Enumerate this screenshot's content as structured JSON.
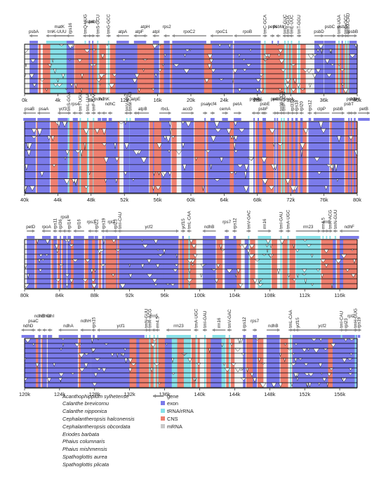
{
  "colors": {
    "exon": "#7b7bea",
    "rna": "#87e0e8",
    "cns": "#ee7f6f",
    "mrna": "#c8c8c8",
    "gene_arrow": "#8a8a8a",
    "track_fill": "#f2f2f2"
  },
  "panels": [
    {
      "range": [
        0,
        40000
      ],
      "ticks": [
        "0k",
        "4k",
        "8k",
        "12k",
        "16k",
        "20k",
        "24k",
        "28k",
        "32k",
        "36k",
        "40k"
      ],
      "genes": [
        {
          "name": "psbA",
          "pos": 1100,
          "dir": -1,
          "row": 0,
          "len": 1000
        },
        {
          "name": "matK",
          "pos": 4200,
          "dir": -1,
          "row": 1,
          "len": 1500
        },
        {
          "name": "trnK-UUU",
          "pos": 3900,
          "dir": -1,
          "row": 0,
          "len": 2600
        },
        {
          "name": "rps16",
          "pos": 5500,
          "dir": -1,
          "row": 0,
          "len": 900
        },
        {
          "name": "trnQ-UUG",
          "pos": 7300,
          "dir": -1,
          "row": 2,
          "len": 120
        },
        {
          "name": "psbK",
          "pos": 7800,
          "dir": 1,
          "row": 2,
          "len": 120
        },
        {
          "name": "psbI",
          "pos": 8200,
          "dir": 1,
          "row": 2,
          "len": 120
        },
        {
          "name": "trnS-GCU",
          "pos": 8800,
          "dir": -1,
          "row": 2,
          "len": 120
        },
        {
          "name": "trnG-GCC",
          "pos": 10100,
          "dir": 1,
          "row": 2,
          "len": 120
        },
        {
          "name": "atpA",
          "pos": 11800,
          "dir": -1,
          "row": 0,
          "len": 1500
        },
        {
          "name": "atpF",
          "pos": 13800,
          "dir": -1,
          "row": 0,
          "len": 1300
        },
        {
          "name": "atpH",
          "pos": 14500,
          "dir": -1,
          "row": 1,
          "len": 250
        },
        {
          "name": "atpI",
          "pos": 15800,
          "dir": -1,
          "row": 0,
          "len": 750
        },
        {
          "name": "rps2",
          "pos": 17100,
          "dir": -1,
          "row": 1,
          "len": 700
        },
        {
          "name": "rpoC2",
          "pos": 19800,
          "dir": -1,
          "row": 0,
          "len": 4100
        },
        {
          "name": "rpoC1",
          "pos": 23700,
          "dir": -1,
          "row": 0,
          "len": 2700
        },
        {
          "name": "rpoB",
          "pos": 26800,
          "dir": -1,
          "row": 0,
          "len": 3200
        },
        {
          "name": "trnC-GCA",
          "pos": 28900,
          "dir": 1,
          "row": 2,
          "len": 120
        },
        {
          "name": "petN",
          "pos": 29800,
          "dir": 1,
          "row": 1,
          "len": 120
        },
        {
          "name": "psbM",
          "pos": 30500,
          "dir": -1,
          "row": 1,
          "len": 120
        },
        {
          "name": "trnD-GUC",
          "pos": 31300,
          "dir": -1,
          "row": 2,
          "len": 120
        },
        {
          "name": "trnY-GUA",
          "pos": 31700,
          "dir": -1,
          "row": 2,
          "len": 120
        },
        {
          "name": "trnE-UUC",
          "pos": 32100,
          "dir": -1,
          "row": 2,
          "len": 120
        },
        {
          "name": "trnT-GGU",
          "pos": 33000,
          "dir": 1,
          "row": 2,
          "len": 120
        },
        {
          "name": "psbD",
          "pos": 35400,
          "dir": 1,
          "row": 0,
          "len": 1100
        },
        {
          "name": "psbC",
          "pos": 36700,
          "dir": 1,
          "row": 1,
          "len": 1400
        },
        {
          "name": "trnS-UGA",
          "pos": 37800,
          "dir": -1,
          "row": 2,
          "len": 120
        },
        {
          "name": "psbZ",
          "pos": 38200,
          "dir": 1,
          "row": 1,
          "len": 120
        },
        {
          "name": "trnG-GCC",
          "pos": 38600,
          "dir": 1,
          "row": 2,
          "len": 120
        },
        {
          "name": "trnfM-CAU",
          "pos": 38900,
          "dir": -1,
          "row": 2,
          "len": 120
        },
        {
          "name": "psbB",
          "pos": 39500,
          "dir": 1,
          "row": 0,
          "len": 900
        }
      ]
    },
    {
      "range": [
        40000,
        80000
      ],
      "ticks": [
        "40k",
        "44k",
        "48k",
        "52k",
        "56k",
        "60k",
        "64k",
        "68k",
        "72k",
        "76k",
        "80k"
      ],
      "genes": [
        {
          "name": "psaB",
          "pos": 40600,
          "dir": -1,
          "row": 0,
          "len": 1500
        },
        {
          "name": "psaA",
          "pos": 42300,
          "dir": -1,
          "row": 0,
          "len": 1500
        },
        {
          "name": "ycf3",
          "pos": 44600,
          "dir": -1,
          "row": 0,
          "len": 1200
        },
        {
          "name": "trnS-GGA",
          "pos": 45300,
          "dir": 1,
          "row": 2,
          "len": 120
        },
        {
          "name": "rps4",
          "pos": 46100,
          "dir": -1,
          "row": 1,
          "len": 600
        },
        {
          "name": "trnT-UGU",
          "pos": 46700,
          "dir": -1,
          "row": 2,
          "len": 120
        },
        {
          "name": "trnL-UAA",
          "pos": 47600,
          "dir": 1,
          "row": 2,
          "len": 120
        },
        {
          "name": "trnF-GAA",
          "pos": 48300,
          "dir": 1,
          "row": 2,
          "len": 120
        },
        {
          "name": "ndhJ",
          "pos": 49000,
          "dir": -1,
          "row": 2,
          "len": 400
        },
        {
          "name": "ndhK",
          "pos": 49600,
          "dir": -1,
          "row": 2,
          "len": 600
        },
        {
          "name": "ndhC",
          "pos": 50300,
          "dir": -1,
          "row": 1,
          "len": 400
        },
        {
          "name": "trnV-UAC",
          "pos": 52300,
          "dir": -1,
          "row": 2,
          "len": 120
        },
        {
          "name": "trnM-CAU",
          "pos": 52700,
          "dir": 1,
          "row": 2,
          "len": 120
        },
        {
          "name": "atpE",
          "pos": 53400,
          "dir": -1,
          "row": 2,
          "len": 300
        },
        {
          "name": "atpB",
          "pos": 54200,
          "dir": -1,
          "row": 0,
          "len": 1500
        },
        {
          "name": "rbcL",
          "pos": 56900,
          "dir": 1,
          "row": 0,
          "len": 1400
        },
        {
          "name": "accD",
          "pos": 59600,
          "dir": 1,
          "row": 0,
          "len": 1500
        },
        {
          "name": "psaI",
          "pos": 61700,
          "dir": 1,
          "row": 1,
          "len": 120
        },
        {
          "name": "ycf4",
          "pos": 62600,
          "dir": 1,
          "row": 1,
          "len": 500
        },
        {
          "name": "cemA",
          "pos": 64100,
          "dir": 1,
          "row": 0,
          "len": 700
        },
        {
          "name": "petA",
          "pos": 65600,
          "dir": 1,
          "row": 1,
          "len": 900
        },
        {
          "name": "psbJ",
          "pos": 67600,
          "dir": -1,
          "row": 2,
          "len": 120
        },
        {
          "name": "psbL",
          "pos": 68100,
          "dir": -1,
          "row": 2,
          "len": 120
        },
        {
          "name": "psbF",
          "pos": 68700,
          "dir": -1,
          "row": 0,
          "len": 120
        },
        {
          "name": "psbE",
          "pos": 68900,
          "dir": -1,
          "row": 1,
          "len": 250
        },
        {
          "name": "petL",
          "pos": 70100,
          "dir": 1,
          "row": 2,
          "len": 120
        },
        {
          "name": "petG",
          "pos": 70400,
          "dir": 1,
          "row": 2,
          "len": 120
        },
        {
          "name": "trnW-CCA",
          "pos": 70900,
          "dir": -1,
          "row": 2,
          "len": 120
        },
        {
          "name": "trnP-UGG",
          "pos": 71200,
          "dir": -1,
          "row": 2,
          "len": 120
        },
        {
          "name": "psaJ",
          "pos": 71700,
          "dir": 1,
          "row": 2,
          "len": 120
        },
        {
          "name": "rpl33",
          "pos": 72200,
          "dir": 1,
          "row": 2,
          "len": 200
        },
        {
          "name": "rps18",
          "pos": 72700,
          "dir": 1,
          "row": 2,
          "len": 300
        },
        {
          "name": "rpl20",
          "pos": 73300,
          "dir": -1,
          "row": 2,
          "len": 300
        },
        {
          "name": "rps12",
          "pos": 74300,
          "dir": -1,
          "row": 1,
          "len": 300
        },
        {
          "name": "clpP",
          "pos": 75700,
          "dir": -1,
          "row": 0,
          "len": 1900
        },
        {
          "name": "psbB",
          "pos": 77700,
          "dir": 1,
          "row": 0,
          "len": 1500
        },
        {
          "name": "psbT",
          "pos": 79000,
          "dir": 1,
          "row": 1,
          "len": 120
        },
        {
          "name": "psbN",
          "pos": 79300,
          "dir": -1,
          "row": 2,
          "len": 120
        },
        {
          "name": "psbH",
          "pos": 79700,
          "dir": 1,
          "row": 2,
          "len": 220
        },
        {
          "name": "petB",
          "pos": 80800,
          "dir": 1,
          "row": 0,
          "len": 1400
        }
      ]
    },
    {
      "range": [
        80000,
        118000
      ],
      "ticks": [
        "80k",
        "84k",
        "88k",
        "92k",
        "96k",
        "100k",
        "104k",
        "108k",
        "112k",
        "116k"
      ],
      "genes": [
        {
          "name": "petD",
          "pos": 80700,
          "dir": 1,
          "row": 0,
          "len": 900
        },
        {
          "name": "rpoA",
          "pos": 82500,
          "dir": -1,
          "row": 0,
          "len": 1000
        },
        {
          "name": "rps11",
          "pos": 83500,
          "dir": -1,
          "row": 1,
          "len": 400
        },
        {
          "name": "rpl36",
          "pos": 84100,
          "dir": -1,
          "row": 2,
          "len": 120
        },
        {
          "name": "rps8",
          "pos": 84600,
          "dir": -1,
          "row": 2,
          "len": 400
        },
        {
          "name": "rpl14",
          "pos": 85100,
          "dir": -1,
          "row": 2,
          "len": 400
        },
        {
          "name": "rpl16",
          "pos": 86200,
          "dir": -1,
          "row": 0,
          "len": 1200
        },
        {
          "name": "rps3",
          "pos": 87600,
          "dir": -1,
          "row": 1,
          "len": 650
        },
        {
          "name": "rpl22",
          "pos": 88200,
          "dir": -1,
          "row": 2,
          "len": 400
        },
        {
          "name": "rps19",
          "pos": 89000,
          "dir": -1,
          "row": 2,
          "len": 280
        },
        {
          "name": "rpl2",
          "pos": 89900,
          "dir": -1,
          "row": 1,
          "len": 1400
        },
        {
          "name": "rpl23",
          "pos": 90400,
          "dir": -1,
          "row": 2,
          "len": 300
        },
        {
          "name": "trnI-CAU",
          "pos": 90900,
          "dir": -1,
          "row": 2,
          "len": 120
        },
        {
          "name": "ycf2",
          "pos": 94200,
          "dir": 1,
          "row": 0,
          "len": 6800
        },
        {
          "name": "ycf15",
          "pos": 98100,
          "dir": 1,
          "row": 1,
          "len": 200
        },
        {
          "name": "trnL-CAA",
          "pos": 98800,
          "dir": -1,
          "row": 2,
          "len": 120
        },
        {
          "name": "ndhB",
          "pos": 101100,
          "dir": -1,
          "row": 0,
          "len": 1500
        },
        {
          "name": "rps7",
          "pos": 103100,
          "dir": -1,
          "row": 1,
          "len": 470
        },
        {
          "name": "rps12",
          "pos": 104000,
          "dir": -1,
          "row": 1,
          "len": 300
        },
        {
          "name": "trnV-GAC",
          "pos": 105600,
          "dir": 1,
          "row": 2,
          "len": 120
        },
        {
          "name": "rrn16",
          "pos": 107400,
          "dir": 1,
          "row": 0,
          "len": 1500
        },
        {
          "name": "trnI-GAU",
          "pos": 109300,
          "dir": 1,
          "row": 1,
          "len": 120
        },
        {
          "name": "trnA-UGC",
          "pos": 110100,
          "dir": 1,
          "row": 2,
          "len": 120
        },
        {
          "name": "rrn23",
          "pos": 112400,
          "dir": 1,
          "row": 0,
          "len": 2800
        },
        {
          "name": "rrn4.5",
          "pos": 114100,
          "dir": 1,
          "row": 1,
          "len": 120
        },
        {
          "name": "rrn5",
          "pos": 114500,
          "dir": 1,
          "row": 1,
          "len": 120
        },
        {
          "name": "trnR-ACG",
          "pos": 114900,
          "dir": 1,
          "row": 2,
          "len": 120
        },
        {
          "name": "trnN-GUU",
          "pos": 115500,
          "dir": -1,
          "row": 2,
          "len": 120
        },
        {
          "name": "ndhF",
          "pos": 117100,
          "dir": -1,
          "row": 0,
          "len": 2200
        }
      ]
    },
    {
      "range": [
        120000,
        158000
      ],
      "ticks": [
        "120k",
        "124k",
        "128k",
        "132k",
        "136k",
        "140k",
        "144k",
        "148k",
        "152k",
        "156k"
      ],
      "genes": [
        {
          "name": "ndhD",
          "pos": 120400,
          "dir": -1,
          "row": 0,
          "len": 1500
        },
        {
          "name": "psaC",
          "pos": 121000,
          "dir": -1,
          "row": 1,
          "len": 250
        },
        {
          "name": "ndhE",
          "pos": 121700,
          "dir": -1,
          "row": 2,
          "len": 300
        },
        {
          "name": "ndhG",
          "pos": 122300,
          "dir": -1,
          "row": 2,
          "len": 500
        },
        {
          "name": "ndhI",
          "pos": 122900,
          "dir": -1,
          "row": 2,
          "len": 500
        },
        {
          "name": "ndhA",
          "pos": 125000,
          "dir": -1,
          "row": 0,
          "len": 2200
        },
        {
          "name": "ndhH",
          "pos": 127000,
          "dir": -1,
          "row": 1,
          "len": 1200
        },
        {
          "name": "rps15",
          "pos": 127900,
          "dir": -1,
          "row": 1,
          "len": 270
        },
        {
          "name": "ycf1",
          "pos": 131000,
          "dir": -1,
          "row": 0,
          "len": 5400
        },
        {
          "name": "trnN-GUU",
          "pos": 133900,
          "dir": 1,
          "row": 2,
          "len": 120
        },
        {
          "name": "trnR-ACG",
          "pos": 134300,
          "dir": -1,
          "row": 2,
          "len": 120
        },
        {
          "name": "rrn5",
          "pos": 134800,
          "dir": -1,
          "row": 2,
          "len": 120
        },
        {
          "name": "rrn4.5",
          "pos": 135200,
          "dir": -1,
          "row": 2,
          "len": 120
        },
        {
          "name": "rrn23",
          "pos": 137600,
          "dir": -1,
          "row": 0,
          "len": 2800
        },
        {
          "name": "trnA-UGC",
          "pos": 139600,
          "dir": -1,
          "row": 1,
          "len": 120
        },
        {
          "name": "trnI-GAU",
          "pos": 140600,
          "dir": -1,
          "row": 1,
          "len": 120
        },
        {
          "name": "rrn16",
          "pos": 142200,
          "dir": -1,
          "row": 1,
          "len": 1500
        },
        {
          "name": "trnV-GAC",
          "pos": 143400,
          "dir": -1,
          "row": 1,
          "len": 120
        },
        {
          "name": "rps12",
          "pos": 145100,
          "dir": 1,
          "row": 1,
          "len": 300
        },
        {
          "name": "rps7",
          "pos": 146300,
          "dir": 1,
          "row": 1,
          "len": 470
        },
        {
          "name": "ndhB",
          "pos": 148400,
          "dir": 1,
          "row": 0,
          "len": 1500
        },
        {
          "name": "trnL-CAA",
          "pos": 150400,
          "dir": 1,
          "row": 2,
          "len": 120
        },
        {
          "name": "ycf15",
          "pos": 151200,
          "dir": -1,
          "row": 2,
          "len": 200
        },
        {
          "name": "ycf2",
          "pos": 154000,
          "dir": -1,
          "row": 0,
          "len": 6800
        },
        {
          "name": "trnI-CAU",
          "pos": 156200,
          "dir": 1,
          "row": 2,
          "len": 120
        },
        {
          "name": "rpl23",
          "pos": 156700,
          "dir": 1,
          "row": 2,
          "len": 300
        },
        {
          "name": "rpl2",
          "pos": 157300,
          "dir": 1,
          "row": 2,
          "len": 1400
        },
        {
          "name": "trnH-GUG",
          "pos": 157800,
          "dir": 1,
          "row": 2,
          "len": 120
        },
        {
          "name": "rps19",
          "pos": 158200,
          "dir": 1,
          "row": 2,
          "len": 280
        }
      ]
    }
  ],
  "species": [
    "Acanthophippium sylhetense",
    "Calanthe brevicornu",
    "Calanthe nipponica",
    "Cephalantheropsis halconensis",
    "Cephalantheropsis obcordata",
    "Eriodes barbata",
    "Phaius columnaris",
    "Phaius mishmensis",
    "Spathoglottis aurea",
    "Spathoglottis plicata"
  ],
  "legend": [
    {
      "label": "gene",
      "kind": "arrow",
      "color": "#8a8a8a"
    },
    {
      "label": "exon",
      "kind": "box",
      "color": "#7b7bea"
    },
    {
      "label": "tRNA/rRNA",
      "kind": "box",
      "color": "#87e0e8"
    },
    {
      "label": "CNS",
      "kind": "box",
      "color": "#ee7f6f"
    },
    {
      "label": "mRNA",
      "kind": "box",
      "color": "#c8c8c8"
    }
  ]
}
